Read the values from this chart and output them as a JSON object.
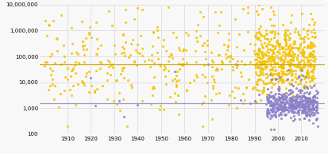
{
  "yellow_color": "#f5c200",
  "purple_color": "#8b80c8",
  "line1_y": 50000,
  "line2_y": 1500,
  "line1_color": "#c8a000",
  "line2_color": "#9090cc",
  "xmin": 1898,
  "xmax": 2020,
  "ymin": 100,
  "ymax": 10000000,
  "xticks": [
    1910,
    1920,
    1930,
    1940,
    1950,
    1960,
    1970,
    1980,
    1990,
    2000,
    2010
  ],
  "yticks": [
    100,
    1000,
    10000,
    100000,
    1000000,
    10000000
  ],
  "ylabels": [
    "100",
    "1,000",
    "10,000",
    "100,000",
    "1,000,000",
    "10,000,000"
  ],
  "background_color": "#f8f8f8",
  "grid_color": "#dddddd"
}
